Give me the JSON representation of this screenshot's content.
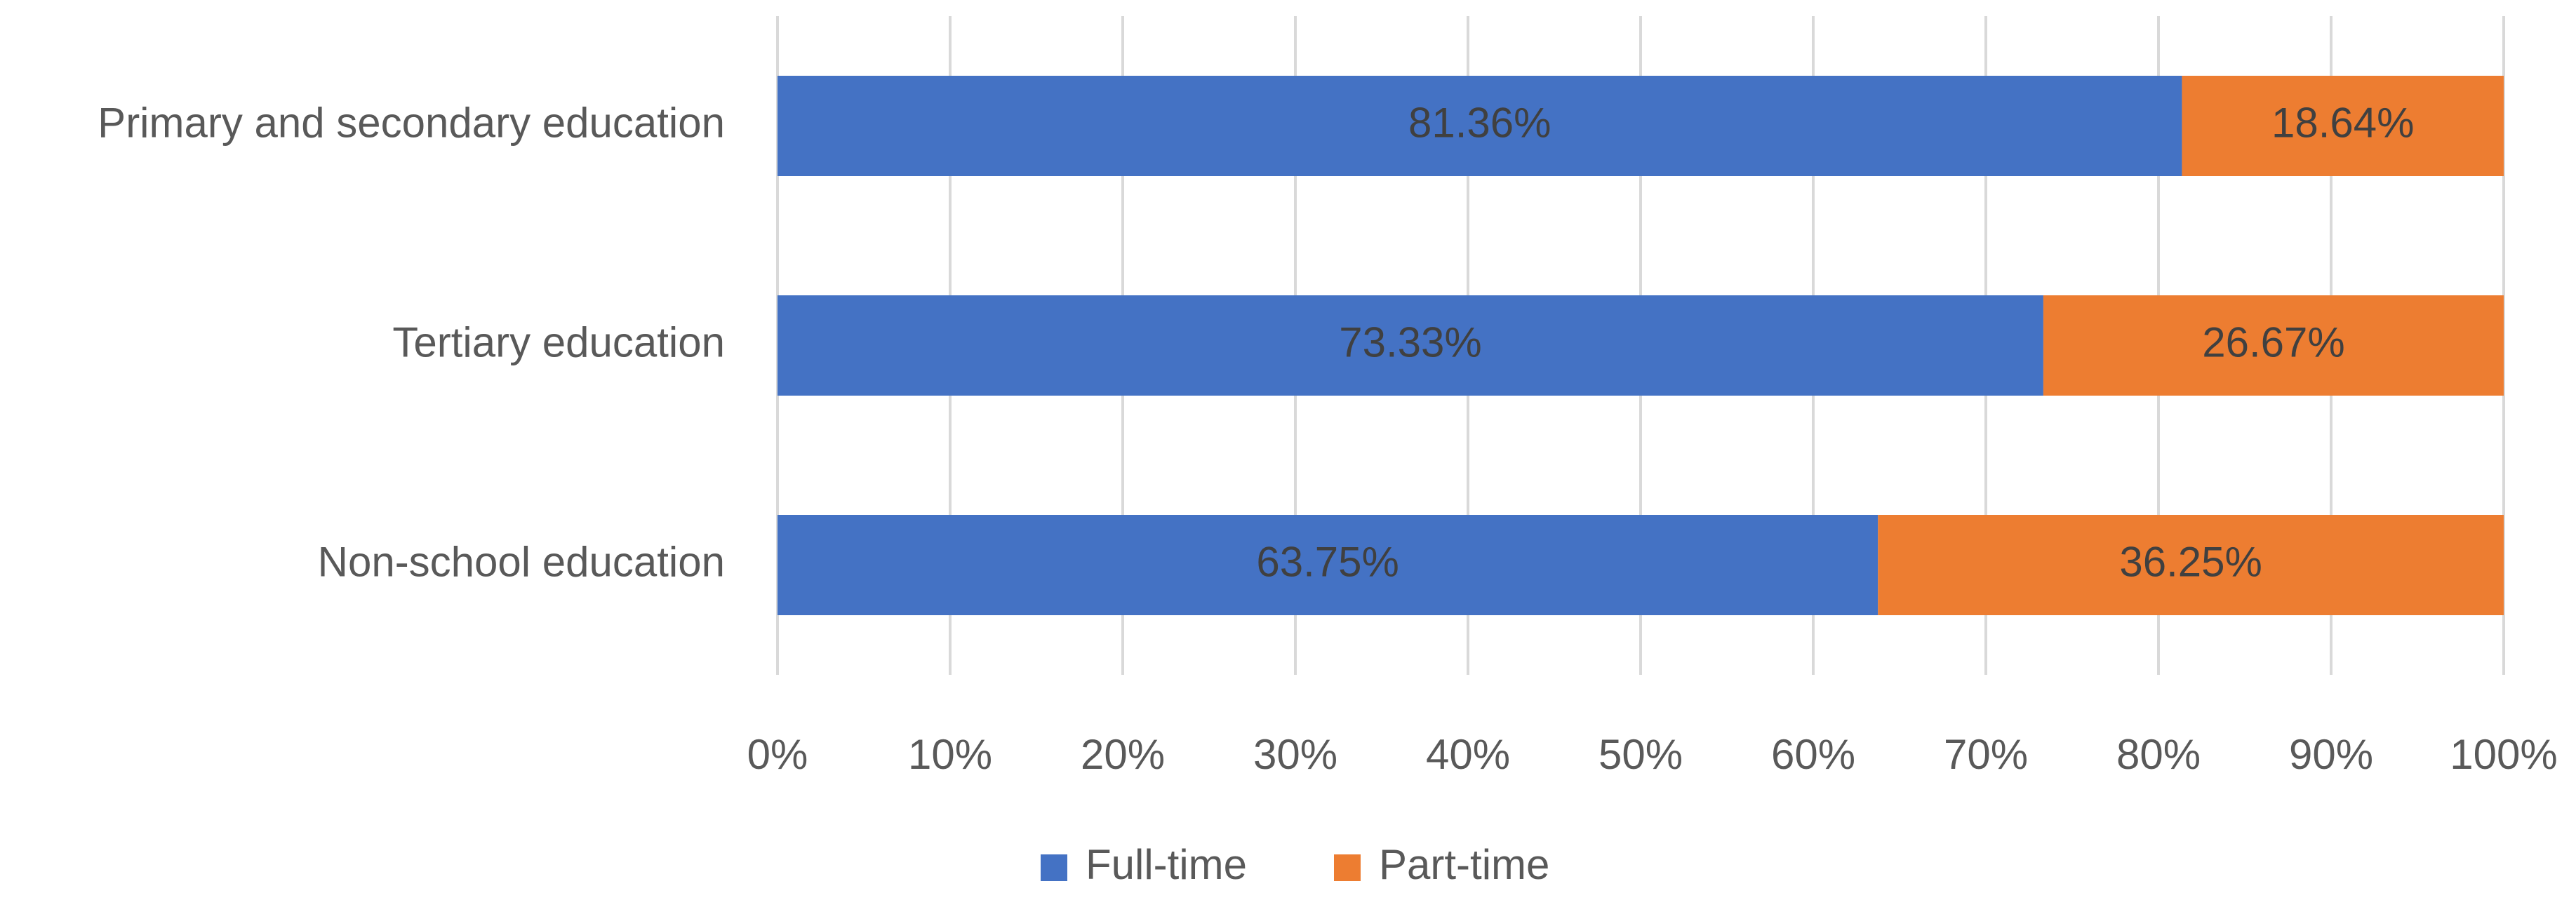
{
  "chart_data": {
    "type": "bar",
    "orientation": "horizontal",
    "stacked": true,
    "categories": [
      "Primary and secondary education",
      "Tertiary education",
      "Non-school education"
    ],
    "series": [
      {
        "name": "Full-time",
        "color": "#4472c4",
        "values": [
          81.36,
          73.33,
          63.75
        ],
        "value_labels": [
          "81.36%",
          "73.33%",
          "63.75%"
        ]
      },
      {
        "name": "Part-time",
        "color": "#ed7d31",
        "values": [
          18.64,
          26.67,
          36.25
        ],
        "value_labels": [
          "18.64%",
          "26.67%",
          "36.25%"
        ]
      }
    ],
    "xlim": [
      0,
      100
    ],
    "xticks": [
      {
        "value": 0,
        "label": "0%"
      },
      {
        "value": 10,
        "label": "10%"
      },
      {
        "value": 20,
        "label": "20%"
      },
      {
        "value": 30,
        "label": "30%"
      },
      {
        "value": 40,
        "label": "40%"
      },
      {
        "value": 50,
        "label": "50%"
      },
      {
        "value": 60,
        "label": "60%"
      },
      {
        "value": 70,
        "label": "70%"
      },
      {
        "value": 80,
        "label": "80%"
      },
      {
        "value": 90,
        "label": "90%"
      },
      {
        "value": 100,
        "label": "100%"
      }
    ],
    "grid": true,
    "legend": "bottom"
  }
}
